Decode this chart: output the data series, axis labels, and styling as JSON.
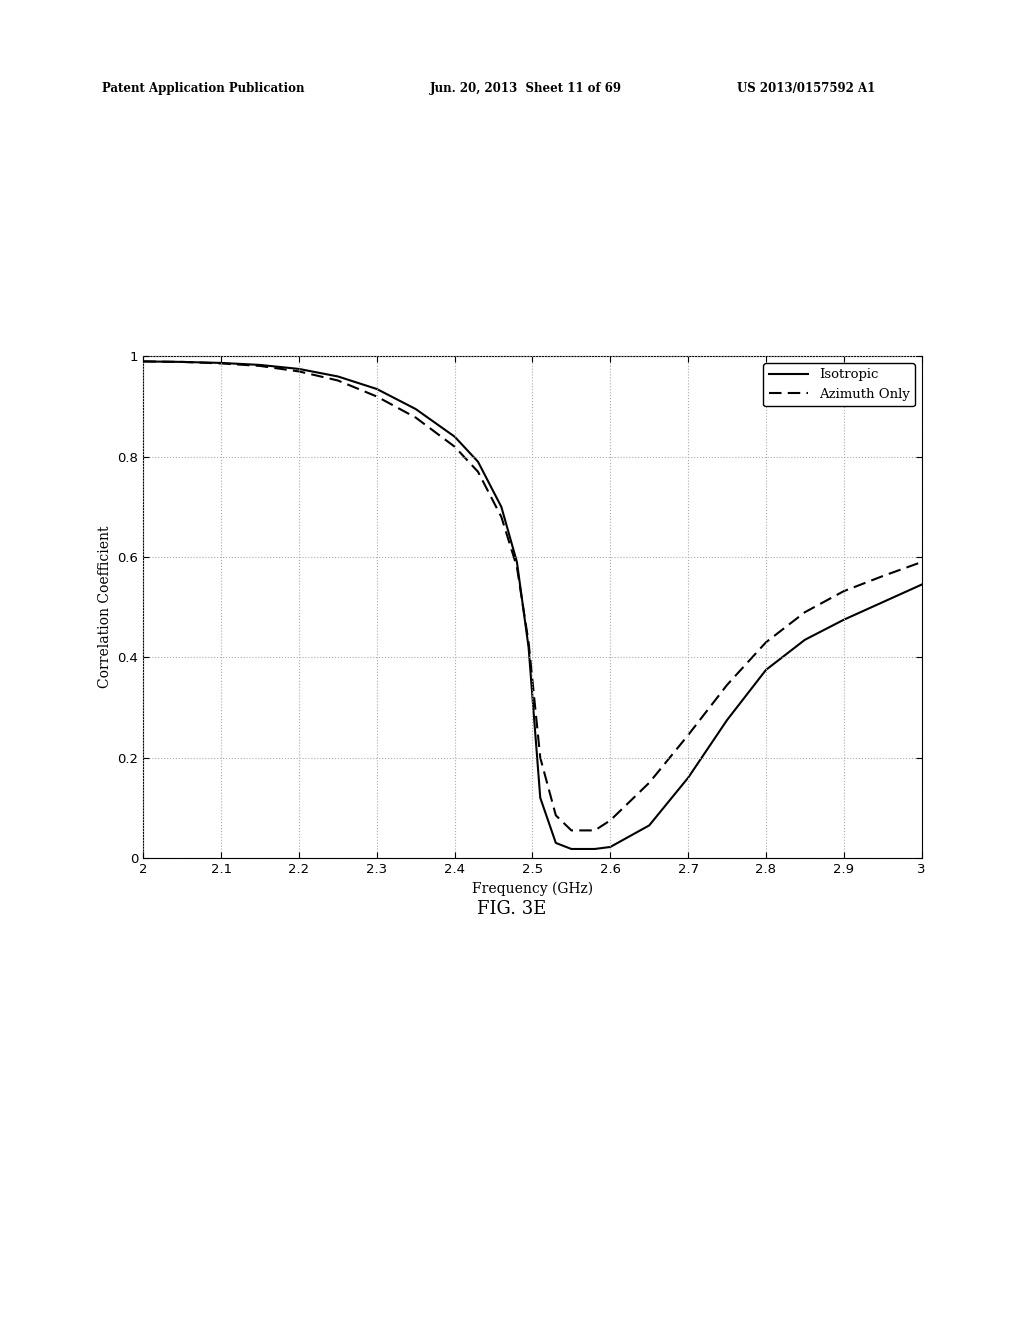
{
  "title": "FIG. 3E",
  "xlabel": "Frequency (GHz)",
  "ylabel": "Correlation Coefficient",
  "xlim": [
    2.0,
    3.0
  ],
  "ylim": [
    0.0,
    1.0
  ],
  "xticks": [
    2.0,
    2.1,
    2.2,
    2.3,
    2.4,
    2.5,
    2.6,
    2.7,
    2.8,
    2.9,
    3.0
  ],
  "yticks": [
    0.0,
    0.2,
    0.4,
    0.6,
    0.8,
    1.0
  ],
  "legend_labels": [
    "Isotropic",
    "Azimuth Only"
  ],
  "isotropic_x": [
    2.0,
    2.05,
    2.1,
    2.15,
    2.2,
    2.25,
    2.3,
    2.35,
    2.4,
    2.43,
    2.46,
    2.48,
    2.495,
    2.51,
    2.53,
    2.55,
    2.58,
    2.6,
    2.65,
    2.7,
    2.75,
    2.8,
    2.85,
    2.9,
    2.95,
    3.0
  ],
  "isotropic_y": [
    0.99,
    0.989,
    0.987,
    0.983,
    0.975,
    0.96,
    0.935,
    0.895,
    0.84,
    0.79,
    0.7,
    0.59,
    0.42,
    0.12,
    0.03,
    0.018,
    0.018,
    0.022,
    0.065,
    0.16,
    0.275,
    0.375,
    0.435,
    0.475,
    0.51,
    0.545
  ],
  "azimuth_x": [
    2.0,
    2.05,
    2.1,
    2.15,
    2.2,
    2.25,
    2.3,
    2.35,
    2.4,
    2.43,
    2.46,
    2.48,
    2.495,
    2.51,
    2.53,
    2.55,
    2.58,
    2.6,
    2.65,
    2.7,
    2.75,
    2.8,
    2.85,
    2.9,
    2.95,
    3.0
  ],
  "azimuth_y": [
    0.99,
    0.989,
    0.986,
    0.981,
    0.97,
    0.952,
    0.92,
    0.878,
    0.82,
    0.77,
    0.68,
    0.58,
    0.43,
    0.2,
    0.085,
    0.055,
    0.055,
    0.075,
    0.15,
    0.245,
    0.345,
    0.43,
    0.49,
    0.532,
    0.562,
    0.59
  ],
  "line_color": "#000000",
  "background_color": "#ffffff",
  "grid_color": "#aaaaaa",
  "header_left": "Patent Application Publication",
  "header_mid": "Jun. 20, 2013  Sheet 11 of 69",
  "header_right": "US 2013/0157592 A1"
}
